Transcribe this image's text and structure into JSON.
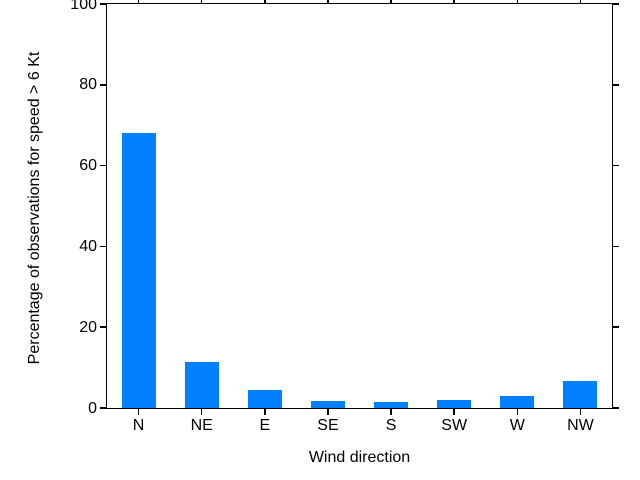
{
  "chart_data": {
    "type": "bar",
    "title": "",
    "categories": [
      "N",
      "NE",
      "E",
      "SE",
      "S",
      "SW",
      "W",
      "NW"
    ],
    "values": [
      68,
      11.5,
      4.5,
      1.7,
      1.4,
      2.0,
      2.9,
      6.6
    ],
    "xlabel": "Wind direction",
    "ylabel": "Percentage of observations for speed > 6 Kt",
    "ylim": [
      0,
      100
    ],
    "yticks": [
      0,
      20,
      40,
      60,
      80,
      100
    ],
    "bar_color": "#0080FF",
    "axis_color": "#000000",
    "background_color": "#FFFFFF",
    "grid": false,
    "legend": "none",
    "tick_direction": "out",
    "mirror_ticks": true
  }
}
